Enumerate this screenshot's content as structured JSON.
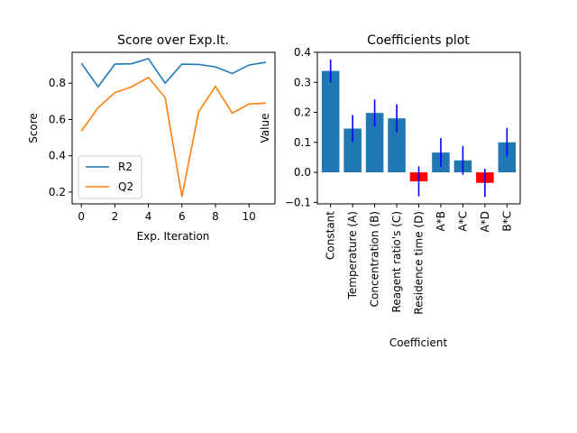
{
  "chart_data": [
    {
      "type": "line",
      "title": "Score over Exp.It.",
      "xlabel": "Exp. Iteration",
      "ylabel": "Score",
      "xlim": [
        -0.55,
        11.55
      ],
      "ylim": [
        0.135,
        0.97
      ],
      "xticks": [
        0,
        2,
        4,
        6,
        8,
        10
      ],
      "yticks": [
        0.2,
        0.4,
        0.6,
        0.8
      ],
      "ytick_labels": [
        "0.2",
        "0.4",
        "0.6",
        "0.8"
      ],
      "x": [
        0,
        1,
        2,
        3,
        4,
        5,
        6,
        7,
        8,
        9,
        10,
        11
      ],
      "series": [
        {
          "name": "R2",
          "color": "#1f77b4",
          "values": [
            0.91,
            0.78,
            0.905,
            0.907,
            0.935,
            0.8,
            0.905,
            0.903,
            0.89,
            0.853,
            0.9,
            0.915
          ]
        },
        {
          "name": "Q2",
          "color": "#ff7f0e",
          "values": [
            0.535,
            0.665,
            0.748,
            0.78,
            0.832,
            0.72,
            0.175,
            0.643,
            0.782,
            0.635,
            0.685,
            0.69
          ]
        }
      ],
      "legend_position": "lower-left"
    },
    {
      "type": "bar",
      "title": "Coefficients plot",
      "xlabel": "Coefficient",
      "ylabel": "Value",
      "ylim": [
        -0.105,
        0.4
      ],
      "yticks": [
        -0.1,
        0.0,
        0.1,
        0.2,
        0.3,
        0.4
      ],
      "ytick_labels": [
        "−0.1",
        "0.0",
        "0.1",
        "0.2",
        "0.3",
        "0.4"
      ],
      "categories": [
        "Constant",
        "Temperature (A)",
        "Concentration (B)",
        "Reagent ratio's (C)",
        "Residence time (D)",
        "A*B",
        "A*C",
        "A*D",
        "B*C"
      ],
      "values": [
        0.338,
        0.146,
        0.198,
        0.18,
        -0.03,
        0.066,
        0.04,
        -0.035,
        0.1
      ],
      "errors": [
        0.038,
        0.045,
        0.045,
        0.047,
        0.05,
        0.048,
        0.048,
        0.047,
        0.048
      ],
      "positive_color": "#1f77b4",
      "negative_color": "#ff0000",
      "error_color": "#0000ff"
    }
  ]
}
